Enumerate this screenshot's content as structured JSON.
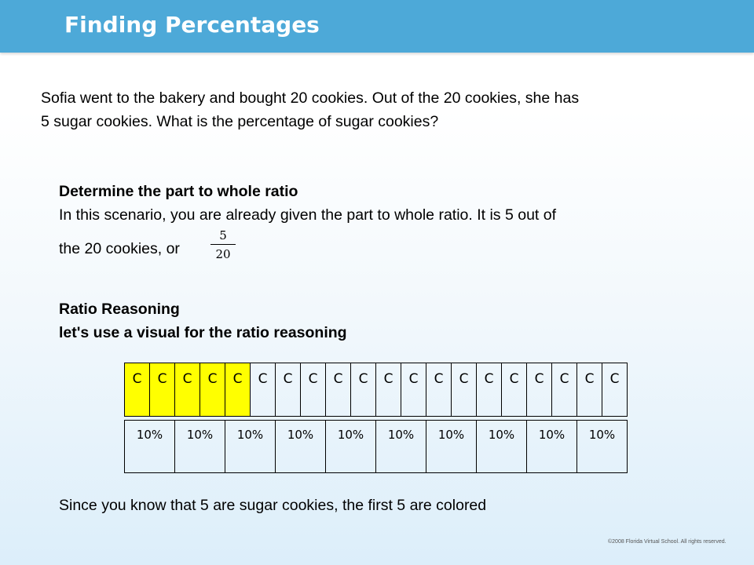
{
  "header": {
    "title": "Finding Percentages",
    "bar_color": "#4da9d8"
  },
  "problem": {
    "line1": "Sofia went to the bakery and bought 20 cookies. Out of the 20 cookies, she has",
    "line2": "5 sugar cookies. What is the percentage of sugar cookies?"
  },
  "step1": {
    "heading": "Determine the part to whole ratio",
    "line1": "In this scenario, you are already given the part to whole ratio. It is 5 out of",
    "line2": "the 20 cookies, or",
    "fraction": {
      "numerator": "5",
      "denominator": "20"
    }
  },
  "step2": {
    "heading1": "Ratio Reasoning",
    "heading2": "let's use a visual for the ratio reasoning"
  },
  "cookie_strip": {
    "highlight_color": "#ffff00",
    "cells": [
      {
        "label": "C",
        "sugar": true
      },
      {
        "label": "C",
        "sugar": true
      },
      {
        "label": "C",
        "sugar": true
      },
      {
        "label": "C",
        "sugar": true
      },
      {
        "label": "C",
        "sugar": true
      },
      {
        "label": "C",
        "sugar": false
      },
      {
        "label": "C",
        "sugar": false
      },
      {
        "label": "C",
        "sugar": false
      },
      {
        "label": "C",
        "sugar": false
      },
      {
        "label": "C",
        "sugar": false
      },
      {
        "label": "C",
        "sugar": false
      },
      {
        "label": "C",
        "sugar": false
      },
      {
        "label": "C",
        "sugar": false
      },
      {
        "label": "C",
        "sugar": false
      },
      {
        "label": "C",
        "sugar": false
      },
      {
        "label": "C",
        "sugar": false
      },
      {
        "label": "C",
        "sugar": false
      },
      {
        "label": "C",
        "sugar": false
      },
      {
        "label": "C",
        "sugar": false
      },
      {
        "label": "C",
        "sugar": false
      }
    ]
  },
  "percent_strip": {
    "cells": [
      "10%",
      "10%",
      "10%",
      "10%",
      "10%",
      "10%",
      "10%",
      "10%",
      "10%",
      "10%"
    ]
  },
  "conclusion": "Since you know that 5 are sugar cookies, the first 5 are colored",
  "footer": {
    "copyright": "©2008 Florida Virtual School. All rights reserved."
  }
}
